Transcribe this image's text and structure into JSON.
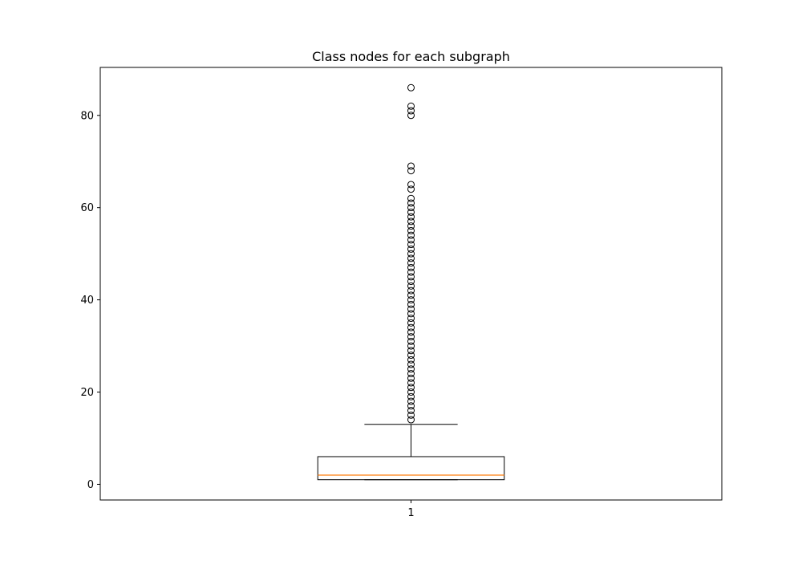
{
  "chart_data": {
    "type": "box",
    "title": "Class nodes for each subgraph",
    "xlabel": "",
    "ylabel": "",
    "categories": [
      "1"
    ],
    "ylim": [
      -3.4,
      90.4
    ],
    "yticks": [
      0,
      20,
      40,
      60,
      80
    ],
    "grid": false,
    "boxes": [
      {
        "category": "1",
        "whisker_low": 1,
        "q1": 1,
        "median": 2,
        "q3": 6,
        "whisker_high": 13,
        "outliers": [
          14,
          15,
          16,
          17,
          18,
          19,
          20,
          21,
          22,
          23,
          24,
          25,
          26,
          27,
          28,
          29,
          30,
          31,
          32,
          33,
          34,
          35,
          36,
          37,
          38,
          39,
          40,
          41,
          42,
          43,
          44,
          45,
          46,
          47,
          48,
          49,
          50,
          51,
          52,
          53,
          54,
          55,
          56,
          57,
          58,
          59,
          60,
          61,
          62,
          64,
          65,
          68,
          69,
          80,
          81,
          82,
          86
        ]
      }
    ],
    "colors": {
      "box": "#000000",
      "median": "#ff7f0e",
      "outlier": "#000000"
    }
  }
}
